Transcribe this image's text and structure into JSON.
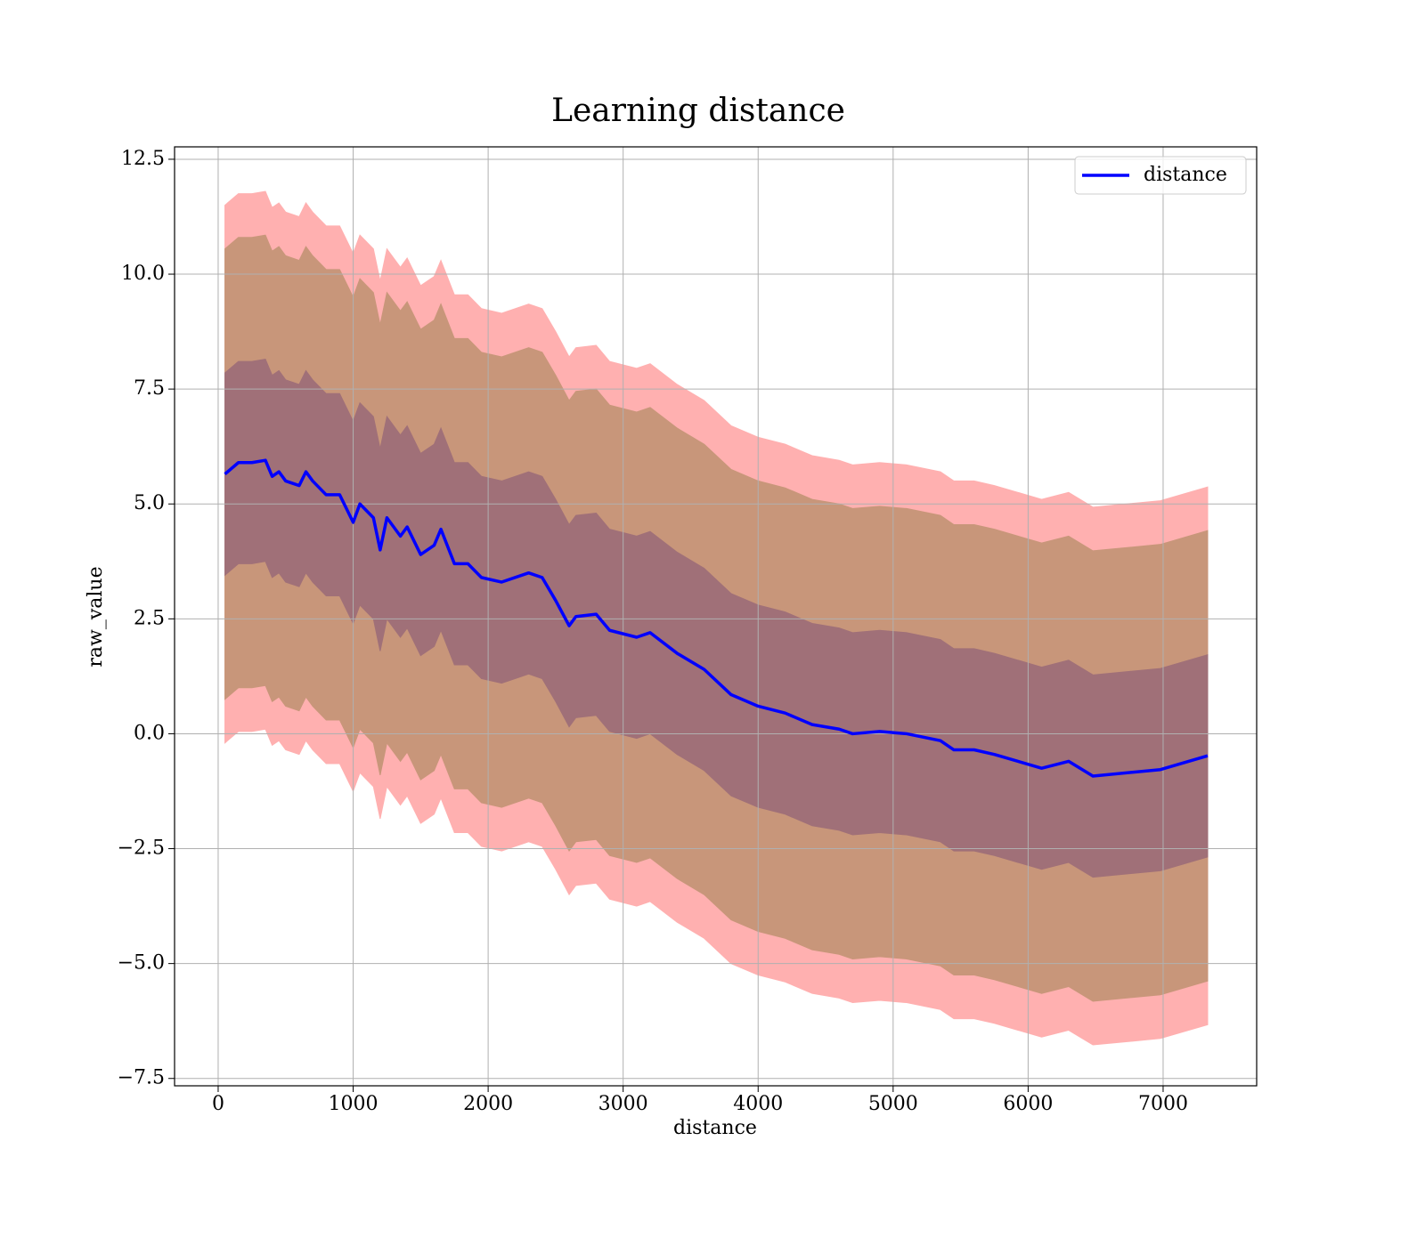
{
  "chart_data": {
    "type": "line",
    "title": "Learning distance",
    "x_label": "distance",
    "y_label": "raw_value",
    "x": [
      50,
      150,
      250,
      350,
      400,
      450,
      500,
      600,
      650,
      700,
      800,
      900,
      950,
      1000,
      1050,
      1150,
      1200,
      1250,
      1350,
      1400,
      1500,
      1600,
      1650,
      1750,
      1850,
      1950,
      2100,
      2300,
      2400,
      2500,
      2600,
      2650,
      2800,
      2900,
      3100,
      3200,
      3400,
      3600,
      3800,
      4000,
      4200,
      4400,
      4600,
      4700,
      4900,
      5100,
      5350,
      5450,
      5600,
      5750,
      6100,
      6300,
      6480,
      6980,
      7330
    ],
    "series": [
      {
        "name": "distance",
        "color": "#0000ff",
        "values": [
          5.65,
          5.9,
          5.9,
          5.95,
          5.6,
          5.7,
          5.5,
          5.4,
          5.7,
          5.5,
          5.2,
          5.2,
          4.9,
          4.6,
          5.0,
          4.7,
          4.0,
          4.7,
          4.3,
          4.5,
          3.9,
          4.1,
          4.45,
          3.7,
          3.7,
          3.4,
          3.3,
          3.5,
          3.4,
          2.9,
          2.35,
          2.55,
          2.6,
          2.25,
          2.1,
          2.2,
          1.75,
          1.4,
          0.85,
          0.6,
          0.45,
          0.2,
          0.1,
          0.0,
          0.05,
          0.0,
          -0.15,
          -0.35,
          -0.35,
          -0.45,
          -0.75,
          -0.6,
          -0.92,
          -0.78,
          -0.48
        ]
      }
    ],
    "bands": [
      {
        "color": "#ffb0b0",
        "upper": [
          11.5,
          11.75,
          11.75,
          11.8,
          11.45,
          11.55,
          11.35,
          11.25,
          11.55,
          11.35,
          11.05,
          11.05,
          10.75,
          10.45,
          10.85,
          10.55,
          9.85,
          10.55,
          10.15,
          10.35,
          9.75,
          9.95,
          10.3,
          9.55,
          9.55,
          9.25,
          9.15,
          9.35,
          9.25,
          8.75,
          8.2,
          8.4,
          8.45,
          8.1,
          7.95,
          8.05,
          7.6,
          7.25,
          6.7,
          6.45,
          6.3,
          6.05,
          5.95,
          5.85,
          5.9,
          5.85,
          5.7,
          5.5,
          5.5,
          5.4,
          5.1,
          5.25,
          4.93,
          5.07,
          5.37
        ],
        "lower": [
          -0.2,
          0.05,
          0.05,
          0.1,
          -0.25,
          -0.15,
          -0.35,
          -0.45,
          -0.15,
          -0.35,
          -0.65,
          -0.65,
          -0.95,
          -1.25,
          -0.85,
          -1.15,
          -1.85,
          -1.15,
          -1.55,
          -1.35,
          -1.95,
          -1.75,
          -1.4,
          -2.15,
          -2.15,
          -2.45,
          -2.55,
          -2.35,
          -2.45,
          -2.95,
          -3.5,
          -3.3,
          -3.25,
          -3.6,
          -3.75,
          -3.65,
          -4.1,
          -4.45,
          -5.0,
          -5.25,
          -5.4,
          -5.65,
          -5.75,
          -5.85,
          -5.8,
          -5.85,
          -6.0,
          -6.2,
          -6.2,
          -6.3,
          -6.6,
          -6.45,
          -6.77,
          -6.63,
          -6.33
        ]
      },
      {
        "color": "#c8967a",
        "upper": [
          10.55,
          10.8,
          10.8,
          10.85,
          10.5,
          10.6,
          10.4,
          10.3,
          10.6,
          10.4,
          10.1,
          10.1,
          9.8,
          9.5,
          9.9,
          9.6,
          8.9,
          9.6,
          9.2,
          9.4,
          8.8,
          9.0,
          9.35,
          8.6,
          8.6,
          8.3,
          8.2,
          8.4,
          8.3,
          7.8,
          7.25,
          7.45,
          7.5,
          7.15,
          7.0,
          7.1,
          6.65,
          6.3,
          5.75,
          5.5,
          5.35,
          5.1,
          5.0,
          4.9,
          4.95,
          4.9,
          4.75,
          4.55,
          4.55,
          4.45,
          4.15,
          4.3,
          3.98,
          4.12,
          4.42
        ],
        "lower": [
          0.75,
          1.0,
          1.0,
          1.05,
          0.7,
          0.8,
          0.6,
          0.5,
          0.8,
          0.6,
          0.3,
          0.3,
          0.0,
          -0.3,
          0.1,
          -0.2,
          -0.9,
          -0.2,
          -0.6,
          -0.4,
          -1.0,
          -0.8,
          -0.45,
          -1.2,
          -1.2,
          -1.5,
          -1.6,
          -1.4,
          -1.5,
          -2.0,
          -2.55,
          -2.35,
          -2.3,
          -2.65,
          -2.8,
          -2.7,
          -3.15,
          -3.5,
          -4.05,
          -4.3,
          -4.45,
          -4.7,
          -4.8,
          -4.9,
          -4.85,
          -4.9,
          -5.05,
          -5.25,
          -5.25,
          -5.35,
          -5.65,
          -5.5,
          -5.82,
          -5.68,
          -5.38
        ]
      },
      {
        "color": "#a07078",
        "upper": [
          7.85,
          8.1,
          8.1,
          8.15,
          7.8,
          7.9,
          7.7,
          7.6,
          7.9,
          7.7,
          7.4,
          7.4,
          7.1,
          6.8,
          7.2,
          6.9,
          6.2,
          6.9,
          6.5,
          6.7,
          6.1,
          6.3,
          6.65,
          5.9,
          5.9,
          5.6,
          5.5,
          5.7,
          5.6,
          5.1,
          4.55,
          4.75,
          4.8,
          4.45,
          4.3,
          4.4,
          3.95,
          3.6,
          3.05,
          2.8,
          2.65,
          2.4,
          2.3,
          2.2,
          2.25,
          2.2,
          2.05,
          1.85,
          1.85,
          1.75,
          1.45,
          1.6,
          1.28,
          1.42,
          1.72
        ],
        "lower": [
          3.45,
          3.7,
          3.7,
          3.75,
          3.4,
          3.5,
          3.3,
          3.2,
          3.5,
          3.3,
          3.0,
          3.0,
          2.7,
          2.4,
          2.8,
          2.5,
          1.8,
          2.5,
          2.1,
          2.3,
          1.7,
          1.9,
          2.25,
          1.5,
          1.5,
          1.2,
          1.1,
          1.3,
          1.2,
          0.7,
          0.15,
          0.35,
          0.4,
          0.05,
          -0.1,
          0.0,
          -0.45,
          -0.8,
          -1.35,
          -1.6,
          -1.75,
          -2.0,
          -2.1,
          -2.2,
          -2.15,
          -2.2,
          -2.35,
          -2.55,
          -2.55,
          -2.65,
          -2.95,
          -2.8,
          -3.12,
          -2.98,
          -2.68
        ]
      }
    ],
    "xlim": [
      -323,
      7693
    ],
    "ylim": [
      -7.66,
      12.77
    ],
    "xticks": [
      0,
      1000,
      2000,
      3000,
      4000,
      5000,
      6000,
      7000
    ],
    "yticks": [
      {
        "value": -7.5,
        "label": "−7.5"
      },
      {
        "value": -5,
        "label": "−5.0"
      },
      {
        "value": -2.5,
        "label": "−2.5"
      },
      {
        "value": 0,
        "label": "0.0"
      },
      {
        "value": 2.5,
        "label": "2.5"
      },
      {
        "value": 5,
        "label": "5.0"
      },
      {
        "value": 7.5,
        "label": "7.5"
      },
      {
        "value": 10,
        "label": "10.0"
      },
      {
        "value": 12.5,
        "label": "12.5"
      }
    ],
    "grid": true,
    "legend": "upper right"
  }
}
